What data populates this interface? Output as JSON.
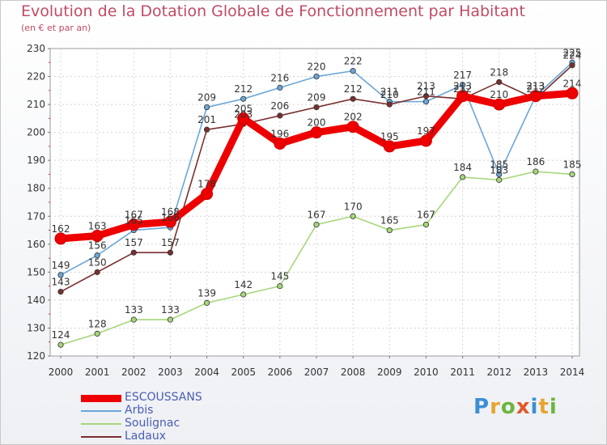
{
  "header": {
    "title": "Evolution de la Dotation Globale de Fonctionnement par Habitant",
    "subtitle": "(en € et par an)"
  },
  "brand": {
    "text": "Proxiti"
  },
  "chart_data": {
    "type": "line",
    "title": "Evolution de la Dotation Globale de Fonctionnement par Habitant",
    "subtitle": "(en € et par an)",
    "xlabel": "",
    "ylabel": "",
    "ylim": [
      120,
      230
    ],
    "yticks": [
      120,
      130,
      140,
      150,
      160,
      170,
      180,
      190,
      200,
      210,
      220,
      230
    ],
    "categories": [
      "2000",
      "2001",
      "2002",
      "2003",
      "2004",
      "2005",
      "2006",
      "2007",
      "2008",
      "2009",
      "2010",
      "2011",
      "2012",
      "2013",
      "2014"
    ],
    "grid": true,
    "legend_position": "bottom-left",
    "series": [
      {
        "name": "ESCOUSSANS",
        "color": "#ee0000",
        "values": [
          162,
          163,
          167,
          168,
          178,
          205,
          196,
          200,
          202,
          195,
          197,
          213,
          210,
          213,
          214
        ],
        "labels": [
          "162",
          "163",
          "167",
          "168",
          "178",
          "205",
          "196",
          "200",
          "202",
          "195",
          "197",
          "213",
          "210",
          "213",
          "214"
        ]
      },
      {
        "name": "Arbis",
        "color": "#6aa6d8",
        "values": [
          149,
          156,
          165,
          166,
          209,
          212,
          216,
          220,
          222,
          211,
          211,
          217,
          185,
          213,
          225
        ],
        "labels": [
          "149",
          "156",
          "165",
          "166",
          "209",
          "212",
          "216",
          "220",
          "222",
          "211",
          "211",
          "217",
          "185",
          "213",
          "225"
        ]
      },
      {
        "name": "Soulignac",
        "color": "#a6d67a",
        "values": [
          124,
          128,
          133,
          133,
          139,
          142,
          145,
          167,
          170,
          165,
          167,
          184,
          183,
          186,
          185
        ],
        "labels": [
          "124",
          "128",
          "133",
          "133",
          "139",
          "142",
          "145",
          "167",
          "170",
          "165",
          "167",
          "184",
          "183",
          "186",
          "185"
        ]
      },
      {
        "name": "Ladaux",
        "color": "#7a2f2f",
        "values": [
          143,
          150,
          157,
          157,
          201,
          203,
          206,
          209,
          212,
          210,
          213,
          212,
          218,
          212,
          224
        ],
        "labels": [
          "143",
          "150",
          "157",
          "157",
          "201",
          "203",
          "206",
          "209",
          "212",
          "210",
          "213",
          "212",
          "218",
          "212",
          "224"
        ]
      }
    ]
  }
}
